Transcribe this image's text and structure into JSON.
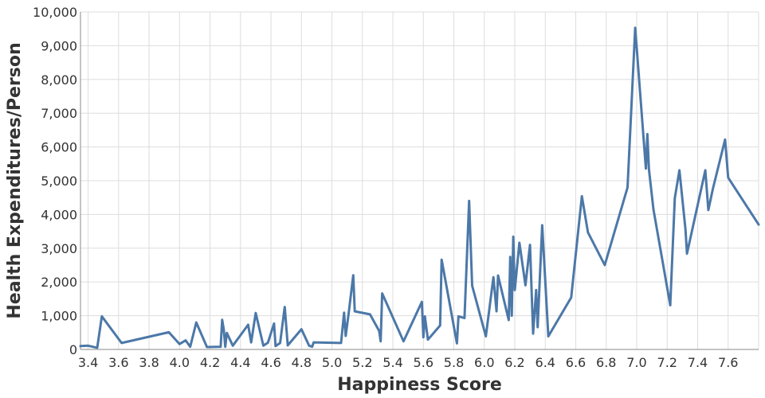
{
  "chart_data": {
    "type": "line",
    "xlabel": "Happiness Score",
    "ylabel": "Health Expenditures/Person",
    "xlim": [
      3.35,
      7.8
    ],
    "ylim": [
      0,
      10000
    ],
    "x_ticks": [
      "3.4",
      "3.6",
      "3.8",
      "4.0",
      "4.2",
      "4.4",
      "4.6",
      "4.8",
      "5.0",
      "5.2",
      "5.4",
      "5.6",
      "5.8",
      "6.0",
      "6.2",
      "6.4",
      "6.6",
      "6.8",
      "7.0",
      "7.2",
      "7.4",
      "7.6"
    ],
    "x_tick_values": [
      3.4,
      3.6,
      3.8,
      4.0,
      4.2,
      4.4,
      4.6,
      4.8,
      5.0,
      5.2,
      5.4,
      5.6,
      5.8,
      6.0,
      6.2,
      6.4,
      6.6,
      6.8,
      7.0,
      7.2,
      7.4,
      7.6
    ],
    "y_ticks": [
      "0",
      "1,000",
      "2,000",
      "3,000",
      "4,000",
      "5,000",
      "6,000",
      "7,000",
      "8,000",
      "9,000",
      "10,000"
    ],
    "y_tick_values": [
      0,
      1000,
      2000,
      3000,
      4000,
      5000,
      6000,
      7000,
      8000,
      9000,
      10000
    ],
    "grid": true,
    "line_color": "#4c78a8",
    "points": [
      [
        3.35,
        100
      ],
      [
        3.4,
        110
      ],
      [
        3.46,
        50
      ],
      [
        3.49,
        980
      ],
      [
        3.62,
        190
      ],
      [
        3.93,
        510
      ],
      [
        4.0,
        160
      ],
      [
        4.04,
        270
      ],
      [
        4.07,
        80
      ],
      [
        4.11,
        800
      ],
      [
        4.18,
        70
      ],
      [
        4.27,
        80
      ],
      [
        4.28,
        880
      ],
      [
        4.29,
        590
      ],
      [
        4.3,
        80
      ],
      [
        4.31,
        490
      ],
      [
        4.35,
        110
      ],
      [
        4.45,
        730
      ],
      [
        4.47,
        210
      ],
      [
        4.5,
        1080
      ],
      [
        4.55,
        110
      ],
      [
        4.58,
        200
      ],
      [
        4.62,
        770
      ],
      [
        4.63,
        100
      ],
      [
        4.66,
        190
      ],
      [
        4.69,
        1260
      ],
      [
        4.71,
        120
      ],
      [
        4.8,
        600
      ],
      [
        4.85,
        110
      ],
      [
        4.87,
        80
      ],
      [
        4.88,
        210
      ],
      [
        5.06,
        190
      ],
      [
        5.08,
        1090
      ],
      [
        5.09,
        400
      ],
      [
        5.11,
        1080
      ],
      [
        5.14,
        2200
      ],
      [
        5.15,
        1130
      ],
      [
        5.25,
        1040
      ],
      [
        5.31,
        550
      ],
      [
        5.32,
        240
      ],
      [
        5.33,
        1660
      ],
      [
        5.47,
        240
      ],
      [
        5.59,
        1410
      ],
      [
        5.6,
        360
      ],
      [
        5.61,
        980
      ],
      [
        5.63,
        290
      ],
      [
        5.71,
        710
      ],
      [
        5.72,
        2660
      ],
      [
        5.82,
        180
      ],
      [
        5.83,
        980
      ],
      [
        5.87,
        930
      ],
      [
        5.9,
        4400
      ],
      [
        5.92,
        1890
      ],
      [
        6.01,
        390
      ],
      [
        6.06,
        2140
      ],
      [
        6.08,
        1130
      ],
      [
        6.09,
        2190
      ],
      [
        6.16,
        870
      ],
      [
        6.17,
        2740
      ],
      [
        6.18,
        1000
      ],
      [
        6.19,
        3340
      ],
      [
        6.2,
        1760
      ],
      [
        6.23,
        3160
      ],
      [
        6.27,
        1900
      ],
      [
        6.3,
        3100
      ],
      [
        6.32,
        470
      ],
      [
        6.34,
        1760
      ],
      [
        6.35,
        660
      ],
      [
        6.38,
        3680
      ],
      [
        6.42,
        390
      ],
      [
        6.57,
        1540
      ],
      [
        6.64,
        4540
      ],
      [
        6.68,
        3470
      ],
      [
        6.79,
        2500
      ],
      [
        6.94,
        4800
      ],
      [
        6.99,
        9530
      ],
      [
        7.06,
        5360
      ],
      [
        7.07,
        6380
      ],
      [
        7.08,
        5350
      ],
      [
        7.11,
        4150
      ],
      [
        7.22,
        1310
      ],
      [
        7.25,
        4480
      ],
      [
        7.28,
        5310
      ],
      [
        7.32,
        3560
      ],
      [
        7.33,
        2840
      ],
      [
        7.45,
        5310
      ],
      [
        7.47,
        4130
      ],
      [
        7.5,
        4760
      ],
      [
        7.58,
        6220
      ],
      [
        7.6,
        5090
      ],
      [
        7.8,
        3700
      ]
    ]
  }
}
